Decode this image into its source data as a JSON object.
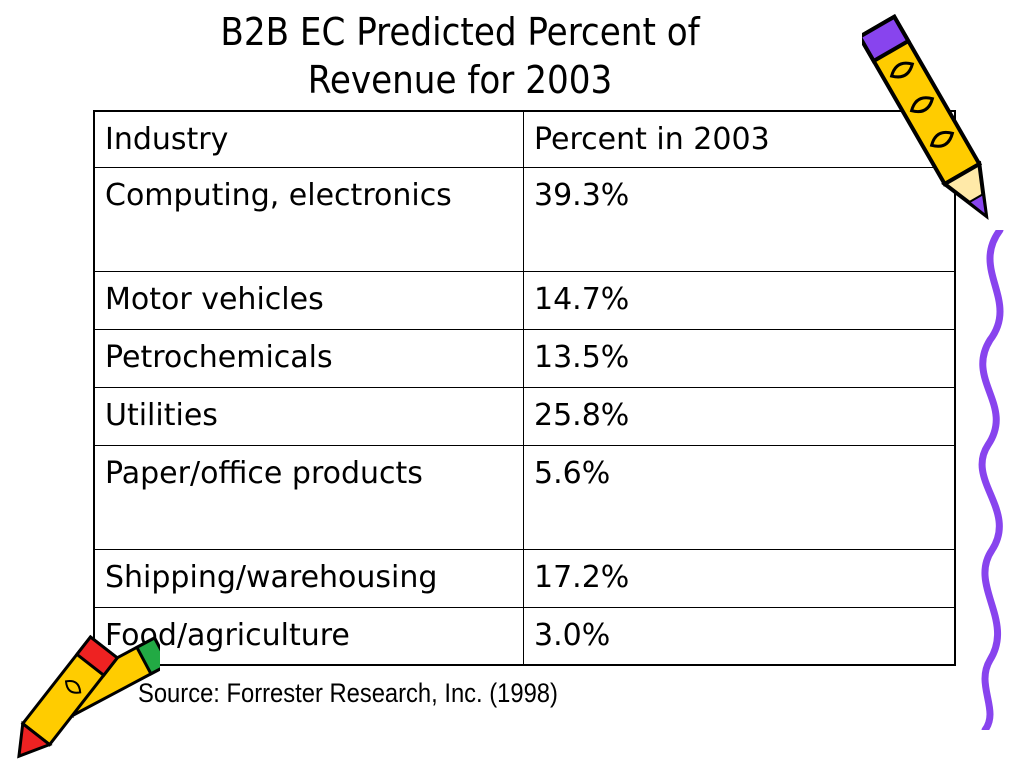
{
  "slide": {
    "title_lines": [
      "B2B EC Predicted Percent of",
      "Revenue for 2003"
    ],
    "table": {
      "headers": [
        "Industry",
        "Percent in 2003"
      ],
      "rows": [
        {
          "industry": "Computing, electronics",
          "percent": "39.3%"
        },
        {
          "industry": "Motor vehicles",
          "percent": "14.7%"
        },
        {
          "industry": "Petrochemicals",
          "percent": "13.5%"
        },
        {
          "industry": "Utilities",
          "percent": "25.8%"
        },
        {
          "industry": "Paper/office products",
          "percent": "5.6%"
        },
        {
          "industry": "Shipping/warehousing",
          "percent": "17.2%"
        },
        {
          "industry": "Food/agriculture",
          "percent": "3.0%"
        }
      ]
    },
    "source": "Source: Forrester Research, Inc. (1998)"
  },
  "icons": [
    "pencil-clipart-icon",
    "squiggle-line-clipart",
    "crayons-clipart-icon"
  ],
  "colors": {
    "pencil_yellow": "#FFCC00",
    "pencil_purple": "#8844EE",
    "crayon_red": "#EE2222",
    "crayon_green": "#22AA44"
  }
}
